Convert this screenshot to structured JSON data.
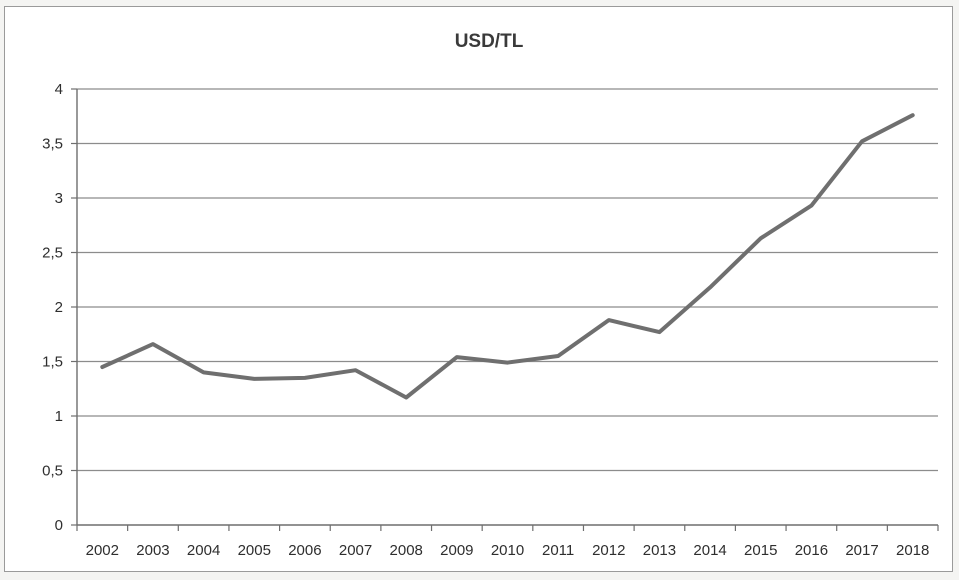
{
  "chart_data": {
    "type": "line",
    "title": "USD/TL",
    "xlabel": "",
    "ylabel": "",
    "categories": [
      "2002",
      "2003",
      "2004",
      "2005",
      "2006",
      "2007",
      "2008",
      "2009",
      "2010",
      "2011",
      "2012",
      "2013",
      "2014",
      "2015",
      "2016",
      "2017",
      "2018"
    ],
    "y_tick_labels": [
      "0",
      "0,5",
      "1",
      "1,5",
      "2",
      "2,5",
      "3",
      "3,5",
      "4"
    ],
    "ylim": [
      0,
      4
    ],
    "y_step": 0.5,
    "grid": "horizontal",
    "legend": "none",
    "series": [
      {
        "values": [
          1.45,
          1.66,
          1.4,
          1.34,
          1.35,
          1.42,
          1.17,
          1.54,
          1.49,
          1.55,
          1.88,
          1.77,
          2.18,
          2.63,
          2.93,
          3.52,
          3.76
        ],
        "color": "#6f6f6f"
      }
    ]
  }
}
